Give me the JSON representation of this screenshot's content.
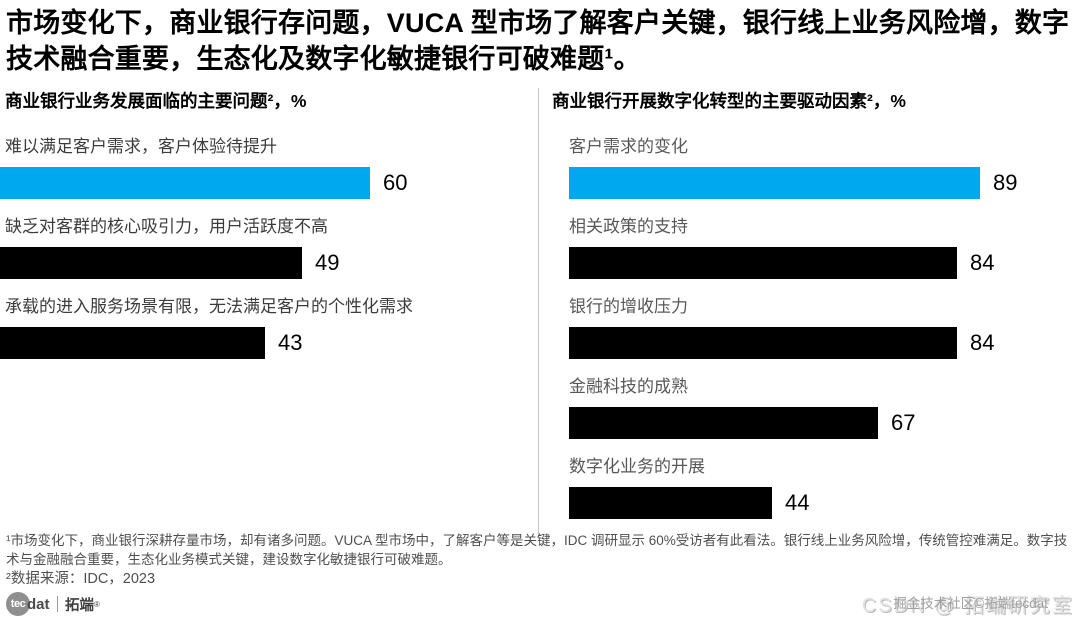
{
  "title": "市场变化下，商业银行存问题，VUCA 型市场了解客户关键，银行线上业务风险增，数字技术融合重要，生态化及数字化敏捷银行可破难题¹。",
  "colors": {
    "accent_blue": "#00A8F0",
    "bar_black": "#000000",
    "divider_gray": "#c6c6c6"
  },
  "chart_data": [
    {
      "type": "bar",
      "orientation": "horizontal",
      "title": "商业银行业务发展面临的主要问题²，%",
      "categories": [
        "难以满足客户需求，客户体验待提升",
        "缺乏对客群的核心吸引力，用户活跃度不高",
        "承载的进入服务场景有限，无法满足客户的个性化需求"
      ],
      "values": [
        60,
        49,
        43
      ],
      "bar_colors": [
        "#00A8F0",
        "#000000",
        "#000000"
      ],
      "value_position": "right-of-bar",
      "xlim": [
        0,
        100
      ],
      "grid": false,
      "legend": null
    },
    {
      "type": "bar",
      "orientation": "horizontal",
      "title": "商业银行开展数字化转型的主要驱动因素²，%",
      "categories": [
        "客户需求的变化",
        "相关政策的支持",
        "银行的增收压力",
        "金融科技的成熟",
        "数字化业务的开展"
      ],
      "values": [
        89,
        84,
        84,
        67,
        44
      ],
      "bar_colors": [
        "#00A8F0",
        "#000000",
        "#000000",
        "#000000",
        "#000000"
      ],
      "value_position": "right-of-bar",
      "xlim": [
        0,
        100
      ],
      "grid": false,
      "legend": null
    }
  ],
  "footnotes": {
    "note1": "¹市场变化下，商业银行深耕存量市场，却有诸多问题。VUCA 型市场中，了解客户等是关键，IDC 调研显示 60%受访者有此看法。银行线上业务风险增，传统管控难满足。数字技术与金融融合重要，生态化业务模式关键，建设数字化敏捷银行可破难题。",
    "source": "²数据来源：IDC，2023"
  },
  "branding": {
    "logo_circle_text": "tec",
    "logo_text": "dat",
    "logo_brand": "拓端",
    "logo_reg": "®"
  },
  "watermarks": {
    "wm_juejin": "掘金技术社区©拓端tecdat",
    "wm_csdn": "CSDN @ 拓端研究室"
  }
}
